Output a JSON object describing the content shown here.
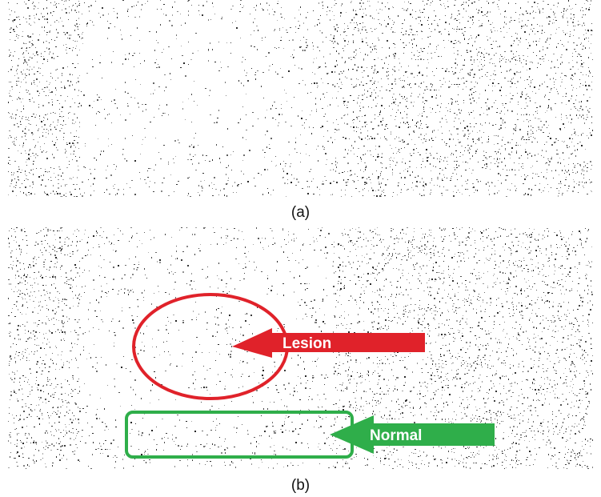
{
  "panels": {
    "a": {
      "caption": "(a)"
    },
    "b": {
      "caption": "(b)",
      "annotations": {
        "lesion": {
          "label": "Lesion",
          "color": "#e0222a"
        },
        "normal": {
          "label": "Normal",
          "color": "#2fae4a"
        }
      }
    }
  },
  "colors": {
    "background": "#ffffff",
    "speckle": "#1a1a1a"
  }
}
